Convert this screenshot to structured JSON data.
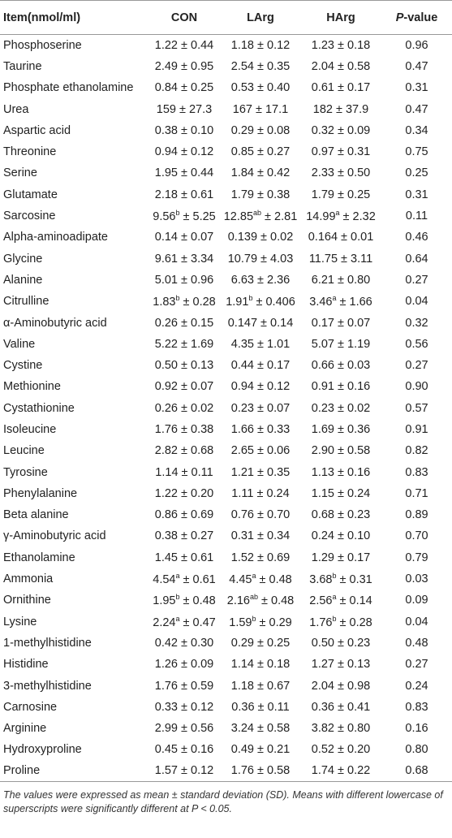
{
  "table": {
    "header": [
      "Item(nmol/ml)",
      "CON",
      "LArg",
      "HArg",
      {
        "italic": "P",
        "text": "-value"
      }
    ],
    "rows": [
      [
        "Phosphoserine",
        "1.22 ± 0.44",
        "1.18 ± 0.12",
        "1.23 ± 0.18",
        "0.96"
      ],
      [
        "Taurine",
        "2.49 ± 0.95",
        "2.54 ± 0.35",
        "2.04 ± 0.58",
        "0.47"
      ],
      [
        "Phosphate ethanolamine",
        "0.84 ± 0.25",
        "0.53 ± 0.40",
        "0.61 ± 0.17",
        "0.31"
      ],
      [
        "Urea",
        "159 ± 27.3",
        "167 ± 17.1",
        "182 ± 37.9",
        "0.47"
      ],
      [
        "Aspartic acid",
        "0.38 ± 0.10",
        "0.29 ± 0.08",
        "0.32 ± 0.09",
        "0.34"
      ],
      [
        "Threonine",
        "0.94 ± 0.12",
        "0.85 ± 0.27",
        "0.97 ± 0.31",
        "0.75"
      ],
      [
        "Serine",
        "1.95 ± 0.44",
        "1.84 ± 0.42",
        "2.33 ± 0.50",
        "0.25"
      ],
      [
        "Glutamate",
        "2.18 ± 0.61",
        "1.79 ± 0.38",
        "1.79 ± 0.25",
        "0.31"
      ],
      [
        "Sarcosine",
        {
          "pre": "9.56",
          "sup": "b",
          "post": " ± 5.25"
        },
        {
          "pre": "12.85",
          "sup": "ab",
          "post": " ± 2.81"
        },
        {
          "pre": "14.99",
          "sup": "a",
          "post": " ± 2.32"
        },
        "0.11"
      ],
      [
        "Alpha-aminoadipate",
        "0.14 ± 0.07",
        "0.139 ± 0.02",
        "0.164 ± 0.01",
        "0.46"
      ],
      [
        "Glycine",
        "9.61 ± 3.34",
        "10.79 ± 4.03",
        "11.75 ± 3.11",
        "0.64"
      ],
      [
        "Alanine",
        "5.01 ± 0.96",
        "6.63 ± 2.36",
        "6.21 ± 0.80",
        "0.27"
      ],
      [
        "Citrulline",
        {
          "pre": "1.83",
          "sup": "b",
          "post": " ± 0.28"
        },
        {
          "pre": "1.91",
          "sup": "b",
          "post": " ± 0.406"
        },
        {
          "pre": "3.46",
          "sup": "a",
          "post": " ± 1.66"
        },
        "0.04"
      ],
      [
        "α-Aminobutyric acid",
        "0.26 ± 0.15",
        "0.147 ± 0.14",
        "0.17 ± 0.07",
        "0.32"
      ],
      [
        "Valine",
        "5.22 ± 1.69",
        "4.35 ± 1.01",
        "5.07 ± 1.19",
        "0.56"
      ],
      [
        "Cystine",
        "0.50 ± 0.13",
        "0.44 ± 0.17",
        "0.66 ± 0.03",
        "0.27"
      ],
      [
        "Methionine",
        "0.92 ± 0.07",
        "0.94 ± 0.12",
        "0.91 ± 0.16",
        "0.90"
      ],
      [
        "Cystathionine",
        "0.26 ± 0.02",
        "0.23 ± 0.07",
        "0.23 ± 0.02",
        "0.57"
      ],
      [
        "Isoleucine",
        "1.76 ± 0.38",
        "1.66 ± 0.33",
        "1.69 ± 0.36",
        "0.91"
      ],
      [
        "Leucine",
        "2.82 ± 0.68",
        "2.65 ± 0.06",
        "2.90 ± 0.58",
        "0.82"
      ],
      [
        "Tyrosine",
        "1.14 ± 0.11",
        "1.21 ± 0.35",
        "1.13 ± 0.16",
        "0.83"
      ],
      [
        "Phenylalanine",
        "1.22 ± 0.20",
        "1.11 ± 0.24",
        "1.15 ± 0.24",
        "0.71"
      ],
      [
        "Beta alanine",
        "0.86 ± 0.69",
        "0.76 ± 0.70",
        "0.68 ± 0.23",
        "0.89"
      ],
      [
        "γ-Aminobutyric acid",
        "0.38 ± 0.27",
        "0.31 ± 0.34",
        "0.24 ± 0.10",
        "0.70"
      ],
      [
        "Ethanolamine",
        "1.45 ± 0.61",
        "1.52 ± 0.69",
        "1.29 ± 0.17",
        "0.79"
      ],
      [
        "Ammonia",
        {
          "pre": "4.54",
          "sup": "a",
          "post": " ± 0.61"
        },
        {
          "pre": "4.45",
          "sup": "a",
          "post": " ± 0.48"
        },
        {
          "pre": "3.68",
          "sup": "b",
          "post": " ± 0.31"
        },
        "0.03"
      ],
      [
        "Ornithine",
        {
          "pre": "1.95",
          "sup": "b",
          "post": " ± 0.48"
        },
        {
          "pre": "2.16",
          "sup": "ab",
          "post": " ± 0.48"
        },
        {
          "pre": "2.56",
          "sup": "a",
          "post": " ± 0.14"
        },
        "0.09"
      ],
      [
        "Lysine",
        {
          "pre": "2.24",
          "sup": "a",
          "post": " ± 0.47"
        },
        {
          "pre": "1.59",
          "sup": "b",
          "post": " ± 0.29"
        },
        {
          "pre": "1.76",
          "sup": "b",
          "post": " ± 0.28"
        },
        "0.04"
      ],
      [
        "1-methylhistidine",
        "0.42 ± 0.30",
        "0.29 ± 0.25",
        "0.50 ± 0.23",
        "0.48"
      ],
      [
        "Histidine",
        "1.26 ± 0.09",
        "1.14 ± 0.18",
        "1.27 ± 0.13",
        "0.27"
      ],
      [
        "3-methylhistidine",
        "1.76 ± 0.59",
        "1.18 ± 0.67",
        "2.04 ± 0.98",
        "0.24"
      ],
      [
        "Carnosine",
        "0.33 ± 0.12",
        "0.36 ± 0.11",
        "0.36 ± 0.41",
        "0.83"
      ],
      [
        "Arginine",
        "2.99 ± 0.56",
        "3.24 ± 0.58",
        "3.82 ± 0.80",
        "0.16"
      ],
      [
        "Hydroxyproline",
        "0.45 ± 0.16",
        "0.49 ± 0.21",
        "0.52 ± 0.20",
        "0.80"
      ],
      [
        "Proline",
        "1.57 ± 0.12",
        "1.76 ± 0.58",
        "1.74 ± 0.22",
        "0.68"
      ]
    ],
    "footnote": "The values were expressed as mean ± standard deviation (SD). Means with different lowercase of superscripts were significantly different at P < 0.05."
  }
}
